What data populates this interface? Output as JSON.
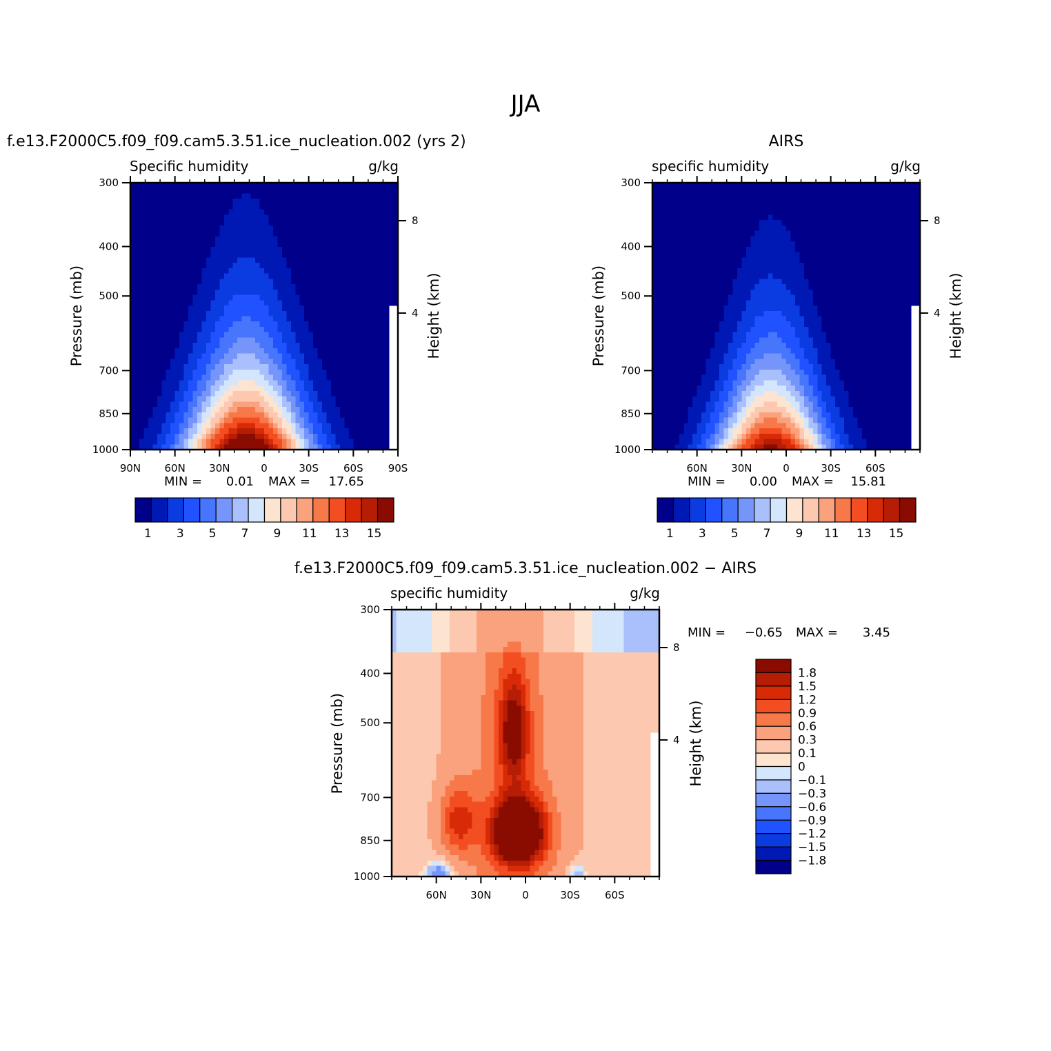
{
  "figure": {
    "title": "JJA"
  },
  "colors": {
    "absolute_levels": [
      "#00008a",
      "#0018b4",
      "#0b3ce2",
      "#2152ff",
      "#4775fc",
      "#7595fb",
      "#a9c0fd",
      "#d3e6fb",
      "#fde4d1",
      "#fcc9b0",
      "#faa27d",
      "#f77849",
      "#f24e22",
      "#d92a08",
      "#b51d04",
      "#8a0b00"
    ],
    "difference_levels": [
      "#00008a",
      "#0018b4",
      "#0b3ce2",
      "#2152ff",
      "#4775fc",
      "#7595fb",
      "#a9c0fd",
      "#d3e6fb",
      "#fde4d1",
      "#fcc9b0",
      "#faa27d",
      "#f77849",
      "#f24e22",
      "#d92a08",
      "#b51d04",
      "#8a0b00"
    ]
  },
  "chart_data": [
    {
      "type": "heatmap",
      "panel": "model",
      "title": "f.e13.F2000C5.f09_f09.cam5.3.51.ice_nucleation.002 (yrs 2)",
      "left_label": "Specific humidity",
      "right_label": "g/kg",
      "ylabel": "Pressure (mb)",
      "ylabel_right": "Height (km)",
      "x_ticks": [
        "90N",
        "60N",
        "30N",
        "0",
        "30S",
        "60S",
        "90S"
      ],
      "x_tick_lat": [
        90,
        60,
        30,
        0,
        -30,
        -60,
        -90
      ],
      "xlim": [
        90,
        -90
      ],
      "y_ticks": [
        "300",
        "400",
        "500",
        "700",
        "850",
        "1000"
      ],
      "y_tick_values": [
        300,
        400,
        500,
        700,
        850,
        1000
      ],
      "ylim": [
        1000,
        300
      ],
      "y_scale": "log",
      "height_ticks": [
        "8",
        "4"
      ],
      "height_tick_pressure": [
        356,
        540
      ],
      "stats_text": {
        "min_label": "MIN =",
        "min": "0.01",
        "max_label": "MAX =",
        "max": "17.65"
      },
      "field": {
        "peak": 17.65,
        "peak_lat": 12,
        "lat_spread": 20,
        "surface_value": 9,
        "top_value": 0.2,
        "scale_height_km": 2.0,
        "south_pole_cutoff_lat": -85
      },
      "contour_levels": [
        1,
        2,
        3,
        4,
        5,
        6,
        7,
        8,
        9,
        10,
        11,
        12,
        13,
        14,
        15
      ],
      "colorbar_ticks": [
        "1",
        "3",
        "5",
        "7",
        "9",
        "11",
        "13",
        "15"
      ],
      "colorbar_orientation": "horizontal"
    },
    {
      "type": "heatmap",
      "panel": "obs",
      "title": "AIRS",
      "left_label": "specific humidity",
      "right_label": "g/kg",
      "ylabel": "Pressure (mb)",
      "ylabel_right": "Height (km)",
      "x_ticks": [
        "60N",
        "30N",
        "0",
        "30S",
        "60S"
      ],
      "x_tick_lat": [
        60,
        30,
        0,
        -30,
        -60
      ],
      "xlim": [
        90,
        -90
      ],
      "y_ticks": [
        "300",
        "400",
        "500",
        "700",
        "850",
        "1000"
      ],
      "y_tick_values": [
        300,
        400,
        500,
        700,
        850,
        1000
      ],
      "ylim": [
        1000,
        300
      ],
      "y_scale": "log",
      "height_ticks": [
        "8",
        "4"
      ],
      "height_tick_pressure": [
        356,
        540
      ],
      "stats_text": {
        "min_label": "MIN =",
        "min": "0.00",
        "max_label": "MAX =",
        "max": "15.81"
      },
      "field": {
        "peak": 15.81,
        "peak_lat": 10,
        "lat_spread": 18,
        "surface_value": 8,
        "top_value": 0.2,
        "scale_height_km": 1.9,
        "south_pole_cutoff_lat": -85
      },
      "contour_levels": [
        1,
        2,
        3,
        4,
        5,
        6,
        7,
        8,
        9,
        10,
        11,
        12,
        13,
        14,
        15
      ],
      "colorbar_ticks": [
        "1",
        "3",
        "5",
        "7",
        "9",
        "11",
        "13",
        "15"
      ],
      "colorbar_orientation": "horizontal"
    },
    {
      "type": "heatmap",
      "panel": "difference",
      "title": "f.e13.F2000C5.f09_f09.cam5.3.51.ice_nucleation.002 − AIRS",
      "left_label": "specific humidity",
      "right_label": "g/kg",
      "ylabel": "Pressure (mb)",
      "ylabel_right": "Height (km)",
      "x_ticks": [
        "60N",
        "30N",
        "0",
        "30S",
        "60S"
      ],
      "x_tick_lat": [
        60,
        30,
        0,
        -30,
        -60
      ],
      "xlim": [
        90,
        -90
      ],
      "y_ticks": [
        "300",
        "400",
        "500",
        "700",
        "850",
        "1000"
      ],
      "y_tick_values": [
        300,
        400,
        500,
        700,
        850,
        1000
      ],
      "ylim": [
        1000,
        300
      ],
      "y_scale": "log",
      "height_ticks": [
        "8",
        "4"
      ],
      "height_tick_pressure": [
        356,
        540
      ],
      "stats_text": {
        "min_label": "MIN =",
        "min": "−0.65",
        "max_label": "MAX =",
        "max": "3.45"
      },
      "field": {
        "peak": 3.45,
        "min": -0.65,
        "peak_lat": 5,
        "peak_pressure": 820,
        "south_pole_cutoff_lat": -85
      },
      "contour_levels": [
        -1.8,
        -1.5,
        -1.2,
        -0.9,
        -0.6,
        -0.3,
        -0.1,
        0,
        0.1,
        0.3,
        0.6,
        0.9,
        1.2,
        1.5,
        1.8
      ],
      "colorbar_ticks": [
        "1.8",
        "1.5",
        "1.2",
        "0.9",
        "0.6",
        "0.3",
        "0.1",
        "0",
        "−0.1",
        "−0.3",
        "−0.6",
        "−0.9",
        "−1.2",
        "−1.5",
        "−1.8"
      ],
      "colorbar_orientation": "vertical"
    }
  ]
}
